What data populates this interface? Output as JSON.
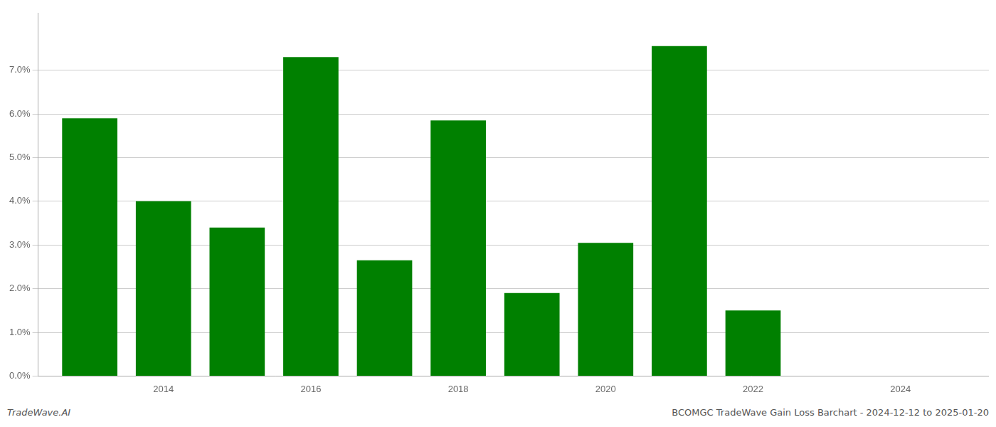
{
  "chart_data": {
    "type": "bar",
    "title": "BCOMGC TradeWave Gain Loss Barchart - 2024-12-12 to 2025-01-20",
    "annotations": [
      "TradeWave.AI"
    ],
    "x": [
      2013,
      2014,
      2015,
      2016,
      2017,
      2018,
      2019,
      2020,
      2021,
      2022
    ],
    "values": [
      0.059,
      0.04,
      0.034,
      0.073,
      0.0265,
      0.0585,
      0.019,
      0.0305,
      0.0755,
      0.015
    ],
    "color": "#008000",
    "xlim": [
      2012.3,
      2025.2
    ],
    "xticks": [
      2014,
      2016,
      2018,
      2020,
      2022,
      2024
    ],
    "ylim": [
      0,
      0.083
    ],
    "yticks": [
      {
        "value": 0.0,
        "label": "0.0%"
      },
      {
        "value": 0.01,
        "label": "1.0%"
      },
      {
        "value": 0.02,
        "label": "2.0%"
      },
      {
        "value": 0.03,
        "label": "3.0%"
      },
      {
        "value": 0.04,
        "label": "4.0%"
      },
      {
        "value": 0.05,
        "label": "5.0%"
      },
      {
        "value": 0.06,
        "label": "6.0%"
      },
      {
        "value": 0.07,
        "label": "7.0%"
      }
    ],
    "grid": true
  }
}
